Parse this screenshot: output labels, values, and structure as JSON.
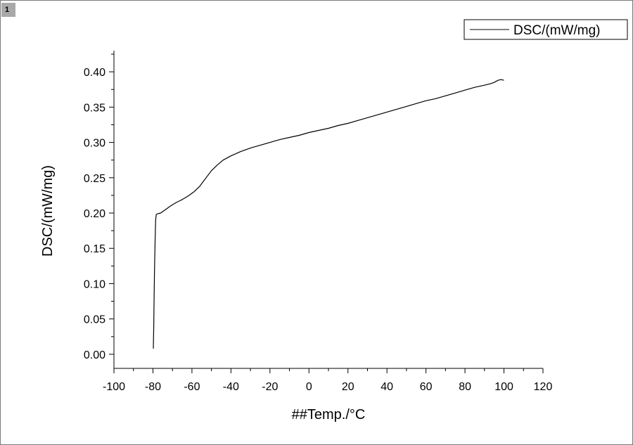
{
  "page": {
    "tab_label": "1"
  },
  "chart_data": {
    "type": "line",
    "title": "",
    "xlabel": "##Temp./°C",
    "ylabel": "DSC/(mW/mg)",
    "xlim": [
      -100,
      120
    ],
    "ylim": [
      -0.02,
      0.43
    ],
    "xticks": [
      -100,
      -80,
      -60,
      -40,
      -20,
      0,
      20,
      40,
      60,
      80,
      100,
      120
    ],
    "yticks": [
      0.0,
      0.05,
      0.1,
      0.15,
      0.2,
      0.25,
      0.3,
      0.35,
      0.4
    ],
    "xtick_labels": [
      "-100",
      "-80",
      "-60",
      "-40",
      "-20",
      "0",
      "20",
      "40",
      "60",
      "80",
      "100",
      "120"
    ],
    "ytick_labels": [
      "0.00",
      "0.05",
      "0.10",
      "0.15",
      "0.20",
      "0.25",
      "0.30",
      "0.35",
      "0.40"
    ],
    "legend": {
      "position": "top-right"
    },
    "grid": false,
    "series": [
      {
        "name": "DSC/(mW/mg)",
        "color": "#000000",
        "points": [
          [
            -79.8,
            0.008
          ],
          [
            -79.6,
            0.04
          ],
          [
            -79.4,
            0.08
          ],
          [
            -79.2,
            0.12
          ],
          [
            -78.9,
            0.16
          ],
          [
            -78.6,
            0.19
          ],
          [
            -78.3,
            0.198
          ],
          [
            -77.5,
            0.199
          ],
          [
            -76.0,
            0.2
          ],
          [
            -74.0,
            0.204
          ],
          [
            -71.0,
            0.21
          ],
          [
            -68.0,
            0.215
          ],
          [
            -65.0,
            0.219
          ],
          [
            -62.0,
            0.224
          ],
          [
            -59.0,
            0.23
          ],
          [
            -56.0,
            0.238
          ],
          [
            -53.0,
            0.249
          ],
          [
            -50.0,
            0.26
          ],
          [
            -47.0,
            0.268
          ],
          [
            -44.0,
            0.275
          ],
          [
            -40.0,
            0.281
          ],
          [
            -35.0,
            0.287
          ],
          [
            -30.0,
            0.292
          ],
          [
            -25.0,
            0.296
          ],
          [
            -20.0,
            0.3
          ],
          [
            -15.0,
            0.304
          ],
          [
            -10.0,
            0.307
          ],
          [
            -5.0,
            0.31
          ],
          [
            0.0,
            0.314
          ],
          [
            5.0,
            0.317
          ],
          [
            10.0,
            0.32
          ],
          [
            15.0,
            0.324
          ],
          [
            20.0,
            0.327
          ],
          [
            25.0,
            0.331
          ],
          [
            30.0,
            0.335
          ],
          [
            35.0,
            0.339
          ],
          [
            40.0,
            0.343
          ],
          [
            45.0,
            0.347
          ],
          [
            50.0,
            0.351
          ],
          [
            55.0,
            0.355
          ],
          [
            60.0,
            0.359
          ],
          [
            65.0,
            0.362
          ],
          [
            70.0,
            0.366
          ],
          [
            75.0,
            0.37
          ],
          [
            80.0,
            0.374
          ],
          [
            85.0,
            0.378
          ],
          [
            90.0,
            0.381
          ],
          [
            93.0,
            0.383
          ],
          [
            95.0,
            0.385
          ],
          [
            97.0,
            0.388
          ],
          [
            98.5,
            0.389
          ],
          [
            100.0,
            0.388
          ]
        ]
      }
    ]
  }
}
